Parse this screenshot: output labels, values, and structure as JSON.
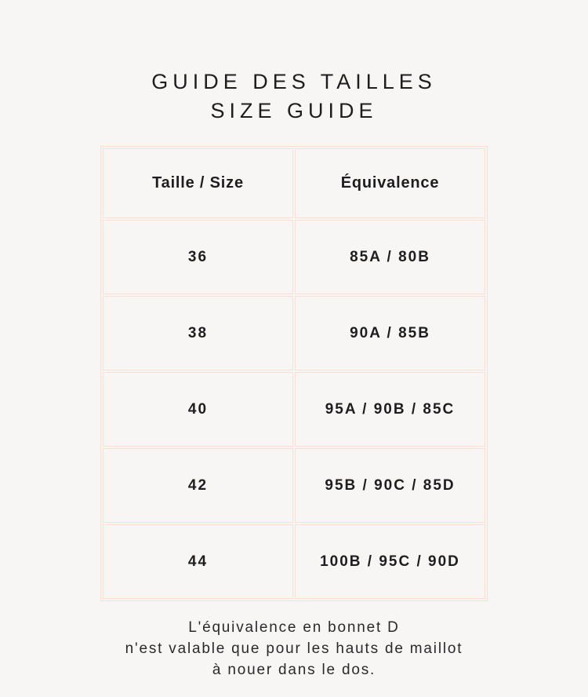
{
  "colors": {
    "background": "#f7f6f4",
    "border": "#fadfd3",
    "text": "#1e1e20"
  },
  "title": {
    "line1": "GUIDE DES TAILLES",
    "line2": "SIZE GUIDE"
  },
  "size_guide_table": {
    "columns": [
      "Taille / Size",
      "Équivalence"
    ],
    "rows": [
      {
        "taille": "36",
        "equivalence": "85A / 80B"
      },
      {
        "taille": "38",
        "equivalence": "90A / 85B"
      },
      {
        "taille": "40",
        "equivalence": "95A / 90B / 85C"
      },
      {
        "taille": "42",
        "equivalence": "95B / 90C / 85D"
      },
      {
        "taille": "44",
        "equivalence": "100B / 95C / 90D"
      }
    ]
  },
  "footnote": {
    "line1": "L'équivalence en bonnet D",
    "line2": "n'est valable que pour les hauts de maillot",
    "line3": "à nouer dans le dos."
  }
}
